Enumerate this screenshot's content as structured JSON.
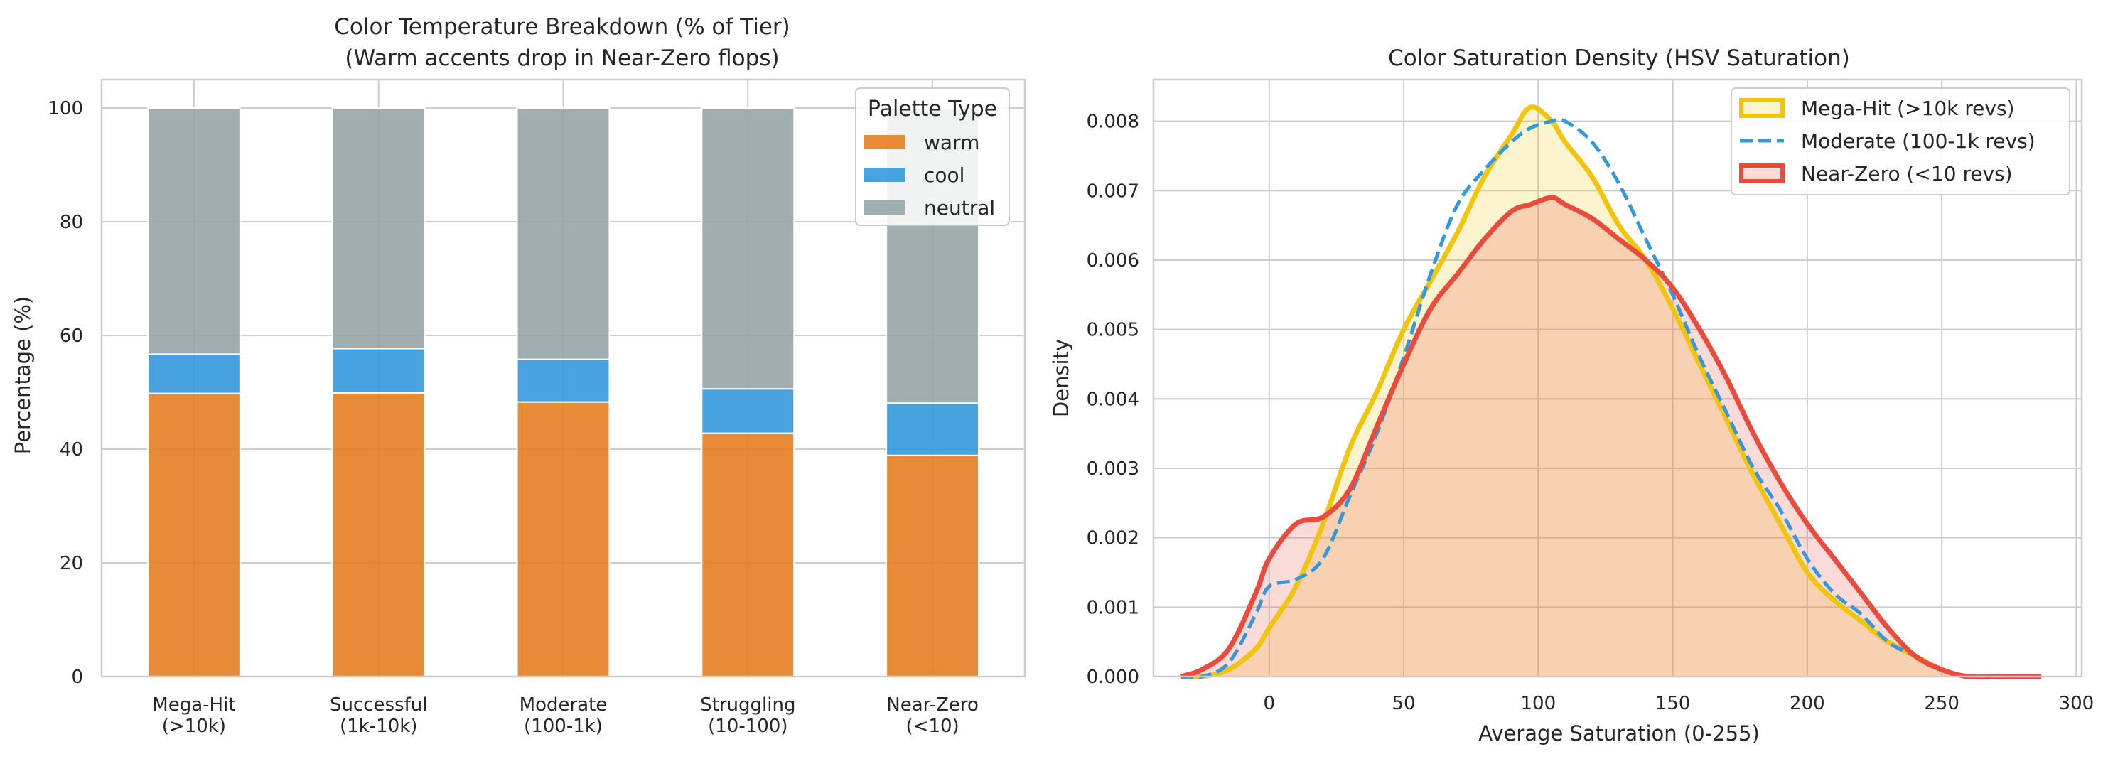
{
  "chart_data": [
    {
      "type": "bar",
      "stacked": true,
      "title": [
        "Color Temperature Breakdown (% of Tier)",
        "(Warm accents drop in Near-Zero flops)"
      ],
      "xlabel": "",
      "ylabel": "Percentage (%)",
      "ylim": [
        0,
        105
      ],
      "yticks": [
        0,
        20,
        40,
        60,
        80,
        100
      ],
      "grid": true,
      "categories": [
        [
          "Mega-Hit",
          "(>10k)"
        ],
        [
          "Successful",
          "(1k-10k)"
        ],
        [
          "Moderate",
          "(100-1k)"
        ],
        [
          "Struggling",
          "(10-100)"
        ],
        [
          "Near-Zero",
          "(<10)"
        ]
      ],
      "legend": {
        "title": "Palette Type",
        "placement": "top-right"
      },
      "series": [
        {
          "name": "warm",
          "color": "#e67e22",
          "values": [
            49.8,
            49.9,
            48.3,
            42.8,
            38.9
          ]
        },
        {
          "name": "cool",
          "color": "#3498db",
          "values": [
            6.9,
            7.8,
            7.5,
            7.8,
            9.2
          ]
        },
        {
          "name": "neutral",
          "color": "#95a5a6",
          "values": [
            43.3,
            42.3,
            44.2,
            49.4,
            51.9
          ]
        }
      ]
    },
    {
      "type": "area",
      "title": "Color Saturation Density (HSV Saturation)",
      "xlabel": "Average Saturation (0-255)",
      "ylabel": "Density",
      "xlim": [
        -43,
        302
      ],
      "ylim": [
        0,
        0.0086
      ],
      "xticks": [
        0,
        50,
        100,
        150,
        200,
        250,
        300
      ],
      "yticks": [
        "0.000",
        "0.001",
        "0.002",
        "0.003",
        "0.004",
        "0.005",
        "0.006",
        "0.007",
        "0.008"
      ],
      "grid": true,
      "legend": {
        "placement": "top-right"
      },
      "x": [
        -33,
        -25,
        -15,
        -5,
        0,
        10,
        20,
        30,
        40,
        50,
        60,
        70,
        80,
        90,
        97,
        105,
        110,
        120,
        130,
        140,
        150,
        160,
        170,
        180,
        190,
        200,
        210,
        220,
        230,
        240,
        250,
        260,
        275,
        287
      ],
      "series": [
        {
          "name": "Mega-Hit (>10k revs)",
          "color": "#f1c40f",
          "line_style": "solid",
          "values": [
            0.0,
            0.0,
            0.0001,
            0.0004,
            0.0007,
            0.0013,
            0.0022,
            0.0033,
            0.0041,
            0.005,
            0.0057,
            0.0064,
            0.0072,
            0.0078,
            0.0082,
            0.008,
            0.0077,
            0.0072,
            0.0065,
            0.006,
            0.0053,
            0.0045,
            0.0037,
            0.0029,
            0.0022,
            0.0015,
            0.0011,
            0.0008,
            0.0005,
            0.0003,
            0.0001,
            0.0,
            0.0,
            0.0
          ]
        },
        {
          "name": "Moderate (100-1k revs)",
          "color": "#3498db",
          "line_style": "dashed",
          "values": [
            0.0,
            0.0,
            0.0002,
            0.0009,
            0.0013,
            0.0014,
            0.0017,
            0.0026,
            0.0035,
            0.0046,
            0.0058,
            0.0068,
            0.0073,
            0.0077,
            0.0079,
            0.008,
            0.008,
            0.0077,
            0.0071,
            0.0063,
            0.0055,
            0.0046,
            0.0038,
            0.003,
            0.0024,
            0.0017,
            0.0012,
            0.0009,
            0.0005,
            0.0003,
            0.0001,
            0.0,
            0.0,
            0.0
          ]
        },
        {
          "name": "Near-Zero (<10 revs)",
          "color": "#e74c3c",
          "line_style": "solid",
          "values": [
            0.0,
            0.0001,
            0.0004,
            0.0012,
            0.0017,
            0.0022,
            0.0023,
            0.0027,
            0.0036,
            0.0045,
            0.0053,
            0.0058,
            0.0063,
            0.0067,
            0.0068,
            0.0069,
            0.0068,
            0.0066,
            0.0063,
            0.006,
            0.0056,
            0.005,
            0.0043,
            0.0035,
            0.0028,
            0.0022,
            0.0017,
            0.0012,
            0.0007,
            0.0003,
            0.0001,
            0.0,
            0.0,
            0.0
          ]
        }
      ]
    }
  ]
}
